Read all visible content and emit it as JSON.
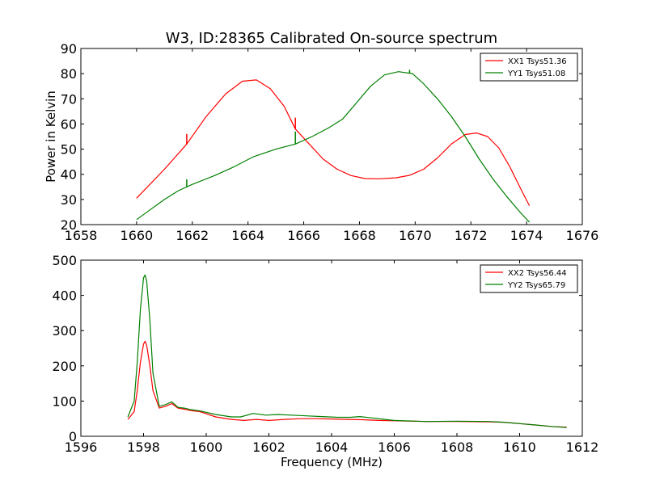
{
  "figure": {
    "title": "W3, ID:28365 Calibrated On-source spectrum",
    "background": "#ffffff"
  },
  "chart_data": [
    {
      "type": "line",
      "title": "W3, ID:28365 Calibrated On-source spectrum",
      "xlabel": "",
      "ylabel": "Power in Kelvin",
      "xlim": [
        1658,
        1676
      ],
      "ylim": [
        20,
        90
      ],
      "xticks": [
        1658,
        1660,
        1662,
        1664,
        1666,
        1668,
        1670,
        1672,
        1674,
        1676
      ],
      "yticks": [
        20,
        30,
        40,
        50,
        60,
        70,
        80,
        90
      ],
      "grid": false,
      "legend_position": "top-right",
      "series": [
        {
          "name": "XX1 Tsys51.36",
          "color": "#ff0000",
          "x": [
            1660.0,
            1661.0,
            1661.8,
            1662.5,
            1663.2,
            1663.8,
            1664.3,
            1664.8,
            1665.3,
            1665.7,
            1666.2,
            1666.7,
            1667.2,
            1667.7,
            1668.2,
            1668.7,
            1669.3,
            1669.8,
            1670.3,
            1670.8,
            1671.3,
            1671.8,
            1672.2,
            1672.6,
            1673.0,
            1673.4,
            1673.8,
            1674.1
          ],
          "y": [
            30.5,
            42.0,
            52.0,
            63.0,
            72.0,
            77.0,
            77.5,
            74.0,
            67.0,
            58.0,
            52.0,
            46.0,
            42.0,
            39.5,
            38.3,
            38.2,
            38.6,
            39.6,
            42.0,
            46.5,
            52.0,
            55.8,
            56.4,
            55.0,
            50.5,
            43.0,
            34.0,
            27.5
          ],
          "spikes": [
            {
              "x": 1661.8,
              "y": 56.0
            },
            {
              "x": 1665.7,
              "y": 62.5
            }
          ]
        },
        {
          "name": "YY1 Tsys51.08",
          "color": "#008000",
          "x": [
            1660.0,
            1660.5,
            1661.0,
            1661.5,
            1662.0,
            1662.8,
            1663.5,
            1664.2,
            1665.0,
            1665.7,
            1666.3,
            1666.9,
            1667.4,
            1667.9,
            1668.4,
            1668.9,
            1669.4,
            1669.9,
            1670.3,
            1670.8,
            1671.3,
            1671.8,
            1672.3,
            1672.8,
            1673.3,
            1673.8,
            1674.1
          ],
          "y": [
            22.0,
            26.0,
            30.0,
            33.5,
            36.0,
            39.5,
            43.0,
            47.0,
            50.0,
            52.0,
            55.0,
            58.5,
            62.0,
            68.5,
            75.0,
            79.5,
            80.8,
            80.0,
            76.0,
            70.0,
            63.0,
            55.0,
            46.0,
            38.0,
            31.0,
            24.5,
            21.0
          ],
          "spikes": [
            {
              "x": 1661.8,
              "y": 38.0
            },
            {
              "x": 1665.7,
              "y": 57.0
            },
            {
              "x": 1669.8,
              "y": 81.5
            }
          ]
        }
      ]
    },
    {
      "type": "line",
      "title": "",
      "xlabel": "Frequency (MHz)",
      "ylabel": "",
      "xlim": [
        1596,
        1612
      ],
      "ylim": [
        0,
        500
      ],
      "xticks": [
        1596,
        1598,
        1600,
        1602,
        1604,
        1606,
        1608,
        1610,
        1612
      ],
      "yticks": [
        0,
        100,
        200,
        300,
        400,
        500
      ],
      "grid": false,
      "legend_position": "top-right",
      "series": [
        {
          "name": "XX2 Tsys56.44",
          "color": "#ff0000",
          "x": [
            1597.5,
            1597.7,
            1597.8,
            1597.9,
            1598.0,
            1598.05,
            1598.1,
            1598.2,
            1598.3,
            1598.5,
            1598.7,
            1598.9,
            1599.1,
            1599.3,
            1599.5,
            1599.8,
            1600.3,
            1600.8,
            1601.2,
            1601.6,
            1602.0,
            1602.5,
            1603.0,
            1603.5,
            1604.0,
            1604.5,
            1605.0,
            1605.5,
            1606.0,
            1607.0,
            1608.0,
            1609.0,
            1609.5,
            1610.0,
            1610.5,
            1611.0,
            1611.5
          ],
          "y": [
            48,
            70,
            130,
            210,
            262,
            270,
            258,
            200,
            130,
            80,
            85,
            93,
            80,
            77,
            73,
            70,
            55,
            48,
            45,
            48,
            45,
            48,
            50,
            50,
            49,
            48,
            47,
            45,
            44,
            42,
            42,
            41,
            40,
            36,
            32,
            28,
            26
          ]
        },
        {
          "name": "YY2 Tsys65.79",
          "color": "#008000",
          "x": [
            1597.5,
            1597.7,
            1597.8,
            1597.9,
            1598.0,
            1598.05,
            1598.1,
            1598.2,
            1598.3,
            1598.5,
            1598.7,
            1598.9,
            1599.1,
            1599.3,
            1599.5,
            1599.8,
            1600.3,
            1600.8,
            1601.1,
            1601.5,
            1601.9,
            1602.3,
            1602.7,
            1603.2,
            1603.7,
            1604.2,
            1604.6,
            1604.9,
            1605.3,
            1605.7,
            1606.0,
            1607.0,
            1608.0,
            1609.0,
            1609.5,
            1610.0,
            1610.5,
            1611.0,
            1611.5
          ],
          "y": [
            55,
            100,
            210,
            360,
            450,
            458,
            440,
            330,
            180,
            85,
            90,
            98,
            82,
            80,
            76,
            72,
            62,
            55,
            55,
            65,
            60,
            62,
            60,
            58,
            56,
            54,
            54,
            56,
            52,
            48,
            45,
            42,
            43,
            42,
            40,
            36,
            32,
            28,
            25
          ]
        }
      ]
    }
  ]
}
